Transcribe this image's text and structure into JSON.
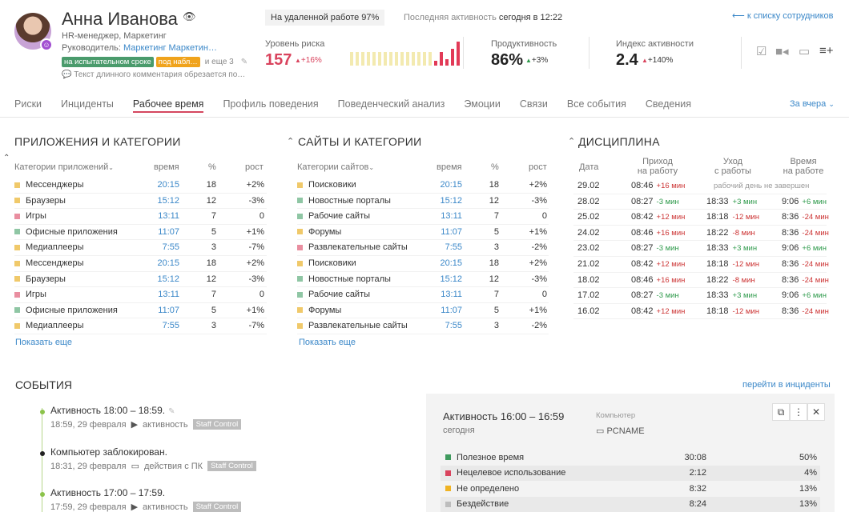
{
  "profile": {
    "name": "Анна Иванова",
    "role": "HR-менеджер, Маркетинг",
    "manager_prefix": "Руководитель: ",
    "manager_name": "Маркетинг Маркетин…",
    "tag_probation": "на испытательном сроке",
    "tag_watch": "под набл…",
    "tags_more": "и еще 3",
    "comment": "Текст длинного комментария обрезается по…",
    "remote": "На удаленной работе 97%",
    "last_activity_label": "Последняя активность ",
    "last_activity_value": "сегодня в 12:22",
    "back_link": "к списку сотрудников"
  },
  "metrics": {
    "risk": {
      "label": "Уровень риска",
      "value": "157",
      "delta": "+16%"
    },
    "productivity": {
      "label": "Продуктивность",
      "value": "86%",
      "delta": "+3%"
    },
    "activity": {
      "label": "Индекс активности",
      "value": "2.4",
      "delta": "+140%"
    },
    "risk_spark": [
      {
        "level": 0.55,
        "color": "#f3eab0"
      },
      {
        "level": 0.55,
        "color": "#f3eab0"
      },
      {
        "level": 0.55,
        "color": "#f3eab0"
      },
      {
        "level": 0.55,
        "color": "#f3eab0"
      },
      {
        "level": 0.55,
        "color": "#f3eab0"
      },
      {
        "level": 0.55,
        "color": "#f3eab0"
      },
      {
        "level": 0.55,
        "color": "#f3eab0"
      },
      {
        "level": 0.55,
        "color": "#f3eab0"
      },
      {
        "level": 0.55,
        "color": "#f3eab0"
      },
      {
        "level": 0.55,
        "color": "#f3eab0"
      },
      {
        "level": 0.55,
        "color": "#f3eab0"
      },
      {
        "level": 0.55,
        "color": "#f3eab0"
      },
      {
        "level": 0.55,
        "color": "#f3eab0"
      },
      {
        "level": 0.55,
        "color": "#f3eab0"
      },
      {
        "level": 0.55,
        "color": "#f3eab0"
      },
      {
        "level": 0.2,
        "color": "#e23a57"
      },
      {
        "level": 0.55,
        "color": "#e23a57"
      },
      {
        "level": 0.25,
        "color": "#e23a57"
      },
      {
        "level": 0.7,
        "color": "#e23a57"
      },
      {
        "level": 1.0,
        "color": "#e23a57"
      }
    ]
  },
  "header_icons": [
    "checkbox-icon",
    "video-icon",
    "monitor-icon",
    "playlist-add-icon"
  ],
  "tabs": [
    "Риски",
    "Инциденты",
    "Рабочее время",
    "Профиль поведения",
    "Поведенческий анализ",
    "Эмоции",
    "Связи",
    "Все события",
    "Сведения"
  ],
  "tabs_active": 2,
  "period": "За вчера",
  "apps": {
    "title": "ПРИЛОЖЕНИЯ И КАТЕГОРИИ",
    "col_category": "Категории приложений",
    "col_time": "время",
    "col_pct": "%",
    "col_growth": "рост",
    "show_more": "Показать еще",
    "rows": [
      {
        "name": "Мессенджеры",
        "time": "20:15",
        "pct": "18",
        "growth": "+2%",
        "color": "#f0c96a"
      },
      {
        "name": "Браузеры",
        "time": "15:12",
        "pct": "12",
        "growth": "-3%",
        "color": "#f0c96a"
      },
      {
        "name": "Игры",
        "time": "13:11",
        "pct": "7",
        "growth": "0",
        "color": "#e98ea0"
      },
      {
        "name": "Офисные приложения",
        "time": "11:07",
        "pct": "5",
        "growth": "+1%",
        "color": "#8fc6a4"
      },
      {
        "name": "Медиаплееры",
        "time": "7:55",
        "pct": "3",
        "growth": "-7%",
        "color": "#f0c96a"
      },
      {
        "name": "Мессенджеры",
        "time": "20:15",
        "pct": "18",
        "growth": "+2%",
        "color": "#f0c96a"
      },
      {
        "name": "Браузеры",
        "time": "15:12",
        "pct": "12",
        "growth": "-3%",
        "color": "#f0c96a"
      },
      {
        "name": "Игры",
        "time": "13:11",
        "pct": "7",
        "growth": "0",
        "color": "#e98ea0"
      },
      {
        "name": "Офисные приложения",
        "time": "11:07",
        "pct": "5",
        "growth": "+1%",
        "color": "#8fc6a4"
      },
      {
        "name": "Медиаплееры",
        "time": "7:55",
        "pct": "3",
        "growth": "-7%",
        "color": "#f0c96a"
      }
    ]
  },
  "sites": {
    "title": "САЙТЫ И КАТЕГОРИИ",
    "col_category": "Категории сайтов",
    "col_time": "время",
    "col_pct": "%",
    "col_growth": "рост",
    "show_more": "Показать еще",
    "rows": [
      {
        "name": "Поисковики",
        "time": "20:15",
        "pct": "18",
        "growth": "+2%",
        "color": "#f0c96a"
      },
      {
        "name": "Новостные порталы",
        "time": "15:12",
        "pct": "12",
        "growth": "-3%",
        "color": "#8fc6a4"
      },
      {
        "name": "Рабочие сайты",
        "time": "13:11",
        "pct": "7",
        "growth": "0",
        "color": "#8fc6a4"
      },
      {
        "name": "Форумы",
        "time": "11:07",
        "pct": "5",
        "growth": "+1%",
        "color": "#f0c96a"
      },
      {
        "name": "Развлекательные сайты",
        "time": "7:55",
        "pct": "3",
        "growth": "-2%",
        "color": "#e98ea0"
      },
      {
        "name": "Поисковики",
        "time": "20:15",
        "pct": "18",
        "growth": "+2%",
        "color": "#f0c96a"
      },
      {
        "name": "Новостные порталы",
        "time": "15:12",
        "pct": "12",
        "growth": "-3%",
        "color": "#8fc6a4"
      },
      {
        "name": "Рабочие сайты",
        "time": "13:11",
        "pct": "7",
        "growth": "0",
        "color": "#8fc6a4"
      },
      {
        "name": "Форумы",
        "time": "11:07",
        "pct": "5",
        "growth": "+1%",
        "color": "#f0c96a"
      },
      {
        "name": "Развлекательные сайты",
        "time": "7:55",
        "pct": "3",
        "growth": "-2%",
        "color": "#f0c96a"
      }
    ]
  },
  "discipline": {
    "title": "ДИСЦИПЛИНА",
    "col_date": "Дата",
    "col_in_1": "Приход",
    "col_in_2": "на работу",
    "col_out_1": "Уход",
    "col_out_2": "с работы",
    "col_time_1": "Время",
    "col_time_2": "на работе",
    "rows": [
      {
        "date": "29.02",
        "in": "08:46",
        "in_d": "+16 мин",
        "in_bad": true,
        "unfinished": "рабочий день не завершен"
      },
      {
        "date": "28.02",
        "in": "08:27",
        "in_d": "-3 мин",
        "in_bad": false,
        "out": "18:33",
        "out_d": "+3 мин",
        "out_bad": false,
        "t": "9:06",
        "t_d": "+6 мин",
        "t_bad": false
      },
      {
        "date": "25.02",
        "in": "08:42",
        "in_d": "+12 мин",
        "in_bad": true,
        "out": "18:18",
        "out_d": "-12 мин",
        "out_bad": true,
        "t": "8:36",
        "t_d": "-24 мин",
        "t_bad": true
      },
      {
        "date": "24.02",
        "in": "08:46",
        "in_d": "+16 мин",
        "in_bad": true,
        "out": "18:22",
        "out_d": "-8 мин",
        "out_bad": true,
        "t": "8:36",
        "t_d": "-24 мин",
        "t_bad": true
      },
      {
        "date": "23.02",
        "in": "08:27",
        "in_d": "-3 мин",
        "in_bad": false,
        "out": "18:33",
        "out_d": "+3 мин",
        "out_bad": false,
        "t": "9:06",
        "t_d": "+6 мин",
        "t_bad": false
      },
      {
        "date": "21.02",
        "in": "08:42",
        "in_d": "+12 мин",
        "in_bad": true,
        "out": "18:18",
        "out_d": "-12 мин",
        "out_bad": true,
        "t": "8:36",
        "t_d": "-24 мин",
        "t_bad": true
      },
      {
        "date": "18.02",
        "in": "08:46",
        "in_d": "+16 мин",
        "in_bad": true,
        "out": "18:22",
        "out_d": "-8 мин",
        "out_bad": true,
        "t": "8:36",
        "t_d": "-24 мин",
        "t_bad": true
      },
      {
        "date": "17.02",
        "in": "08:27",
        "in_d": "-3 мин",
        "in_bad": false,
        "out": "18:33",
        "out_d": "+3 мин",
        "out_bad": false,
        "t": "9:06",
        "t_d": "+6 мин",
        "t_bad": false
      },
      {
        "date": "16.02",
        "in": "08:42",
        "in_d": "+12 мин",
        "in_bad": true,
        "out": "18:18",
        "out_d": "-12 мин",
        "out_bad": true,
        "t": "8:36",
        "t_d": "-24 мин",
        "t_bad": true
      }
    ]
  },
  "events": {
    "title": "СОБЫТИЯ",
    "incidents_link": "перейти в инциденты",
    "items": [
      {
        "title": "Активность 18:00 – 18:59.",
        "time": "18:59, 29 февраля",
        "kind": "активность",
        "badge": "Staff Control",
        "dot": "#8bc34a"
      },
      {
        "title": "Компьютер заблокирован.",
        "time": "18:31, 29 февраля",
        "kind": "действия с ПК",
        "badge": "Staff Control",
        "dot": "#222"
      },
      {
        "title": "Активность 17:00 – 17:59.",
        "time": "17:59, 29 февраля",
        "kind": "активность",
        "badge": "Staff Control",
        "dot": "#8bc34a"
      }
    ]
  },
  "panel": {
    "title": "Активность 16:00 – 16:59",
    "sub": "сегодня",
    "computer_label": "Компьютер",
    "computer": "PCNAME",
    "rows": [
      {
        "name": "Полезное время",
        "time": "30:08",
        "pct": "50%",
        "color": "#3f9a5e"
      },
      {
        "name": "Нецелевое использование",
        "time": "2:12",
        "pct": "4%",
        "color": "#d9435d"
      },
      {
        "name": "Не определено",
        "time": "8:32",
        "pct": "13%",
        "color": "#f0b323"
      },
      {
        "name": "Бездействие",
        "time": "8:24",
        "pct": "13%",
        "color": "#bdbdbd"
      }
    ]
  }
}
